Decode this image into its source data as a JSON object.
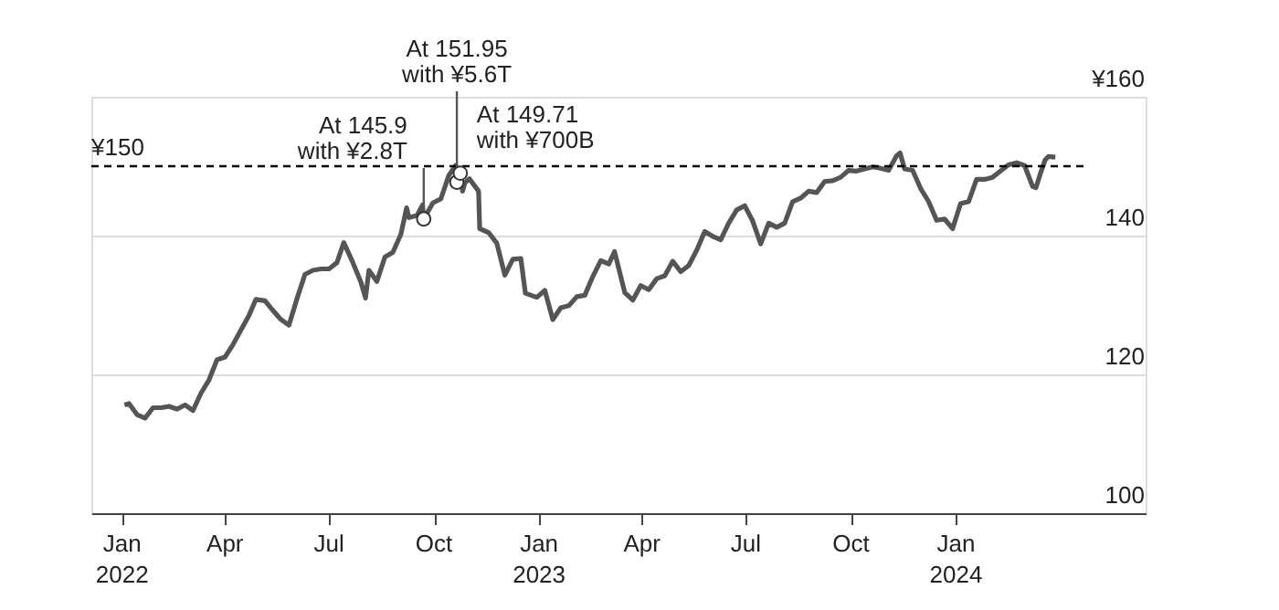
{
  "chart_data": {
    "type": "line",
    "x": [
      "2022-01-03",
      "2022-01-07",
      "2022-01-14",
      "2022-01-21",
      "2022-01-28",
      "2022-02-04",
      "2022-02-11",
      "2022-02-18",
      "2022-02-25",
      "2022-03-04",
      "2022-03-11",
      "2022-03-18",
      "2022-03-25",
      "2022-04-01",
      "2022-04-08",
      "2022-04-15",
      "2022-04-22",
      "2022-04-28",
      "2022-05-06",
      "2022-05-13",
      "2022-05-20",
      "2022-05-27",
      "2022-06-03",
      "2022-06-10",
      "2022-06-17",
      "2022-06-24",
      "2022-07-01",
      "2022-07-08",
      "2022-07-14",
      "2022-07-22",
      "2022-07-29",
      "2022-08-02",
      "2022-08-05",
      "2022-08-12",
      "2022-08-19",
      "2022-08-26",
      "2022-09-02",
      "2022-09-07",
      "2022-09-09",
      "2022-09-16",
      "2022-09-21",
      "2022-09-22",
      "2022-09-30",
      "2022-10-07",
      "2022-10-14",
      "2022-10-20",
      "2022-10-21",
      "2022-10-24",
      "2022-10-26",
      "2022-10-28",
      "2022-11-01",
      "2022-11-09",
      "2022-11-10",
      "2022-11-18",
      "2022-11-25",
      "2022-12-02",
      "2022-12-09",
      "2022-12-16",
      "2022-12-20",
      "2022-12-30",
      "2023-01-06",
      "2023-01-13",
      "2023-01-20",
      "2023-01-27",
      "2023-02-03",
      "2023-02-10",
      "2023-02-17",
      "2023-02-24",
      "2023-03-03",
      "2023-03-08",
      "2023-03-17",
      "2023-03-24",
      "2023-03-31",
      "2023-04-07",
      "2023-04-14",
      "2023-04-21",
      "2023-04-28",
      "2023-05-05",
      "2023-05-12",
      "2023-05-19",
      "2023-05-26",
      "2023-06-02",
      "2023-06-09",
      "2023-06-16",
      "2023-06-23",
      "2023-06-30",
      "2023-07-07",
      "2023-07-14",
      "2023-07-21",
      "2023-07-28",
      "2023-08-04",
      "2023-08-11",
      "2023-08-18",
      "2023-08-25",
      "2023-09-01",
      "2023-09-08",
      "2023-09-15",
      "2023-09-22",
      "2023-09-29",
      "2023-10-06",
      "2023-10-13",
      "2023-10-20",
      "2023-10-27",
      "2023-11-03",
      "2023-11-10",
      "2023-11-13",
      "2023-11-17",
      "2023-11-24",
      "2023-12-01",
      "2023-12-08",
      "2023-12-15",
      "2023-12-22",
      "2023-12-29",
      "2024-01-05",
      "2024-01-12",
      "2024-01-19",
      "2024-01-26",
      "2024-02-02",
      "2024-02-09",
      "2024-02-16",
      "2024-02-23",
      "2024-03-01",
      "2024-03-08",
      "2024-03-11",
      "2024-03-15",
      "2024-03-19",
      "2024-03-22",
      "2024-03-28"
    ],
    "series": [
      {
        "color": "#555555",
        "values": [
          115.6,
          115.8,
          114.2,
          113.7,
          115.2,
          115.2,
          115.4,
          115.0,
          115.6,
          114.8,
          117.3,
          119.2,
          122.1,
          122.5,
          124.3,
          126.4,
          128.5,
          130.8,
          130.6,
          129.2,
          127.9,
          127.1,
          130.9,
          134.4,
          135.0,
          135.2,
          135.2,
          136.1,
          139.0,
          136.1,
          133.3,
          131.0,
          135.0,
          133.4,
          136.9,
          137.6,
          140.2,
          144.0,
          142.6,
          142.9,
          144.4,
          142.4,
          144.7,
          145.3,
          148.7,
          150.1,
          147.7,
          149.0,
          146.4,
          147.6,
          148.2,
          146.4,
          141.0,
          140.4,
          138.9,
          134.3,
          136.6,
          136.7,
          131.7,
          131.1,
          132.1,
          127.9,
          129.6,
          129.9,
          131.2,
          131.4,
          134.1,
          136.4,
          135.9,
          137.7,
          131.8,
          130.7,
          132.8,
          132.2,
          133.8,
          134.2,
          136.3,
          134.8,
          135.7,
          137.9,
          140.6,
          139.9,
          139.4,
          141.8,
          143.7,
          144.3,
          142.1,
          138.8,
          141.8,
          141.2,
          141.8,
          144.9,
          145.4,
          146.4,
          146.2,
          147.8,
          147.9,
          148.4,
          149.4,
          149.3,
          149.6,
          149.9,
          149.7,
          149.4,
          151.5,
          151.9,
          149.6,
          149.4,
          146.8,
          144.9,
          142.2,
          142.4,
          141.0,
          144.6,
          144.9,
          148.1,
          148.1,
          148.4,
          149.3,
          150.2,
          150.5,
          150.1,
          147.1,
          146.9,
          149.0,
          150.9,
          151.4,
          151.3
        ]
      }
    ],
    "xlim": [
      "2021-12-05",
      "2024-06-15"
    ],
    "xticks": [
      {
        "value": "2022-01-01",
        "label": "Jan 2022"
      },
      {
        "value": "2022-04-01",
        "label": "Apr"
      },
      {
        "value": "2022-07-01",
        "label": "Jul"
      },
      {
        "value": "2022-10-01",
        "label": "Oct"
      },
      {
        "value": "2023-01-01",
        "label": "Jan 2023"
      },
      {
        "value": "2023-04-01",
        "label": "Apr"
      },
      {
        "value": "2023-07-01",
        "label": "Jul"
      },
      {
        "value": "2023-10-01",
        "label": "Oct"
      },
      {
        "value": "2024-01-01",
        "label": "Jan 2024"
      }
    ],
    "ylim": [
      100,
      160
    ],
    "yticks": [
      100,
      120,
      140,
      {
        "value": 160,
        "label": "¥160"
      }
    ],
    "grid": "y",
    "ref_lines": [
      {
        "axis": "y",
        "value": 150,
        "label": "¥150",
        "line_style": "dashed",
        "color": "#000000"
      }
    ],
    "annotations": [
      {
        "text": "At 145.9\nwith ¥2.8T",
        "x": "2022-09-22",
        "y": 142.4
      },
      {
        "text": "At 151.95\nwith ¥5.6T",
        "x": "2022-10-21",
        "y": 147.7
      },
      {
        "text": "At 149.71\nwith ¥700B",
        "x": "2022-10-24",
        "y": 149.0
      }
    ]
  }
}
